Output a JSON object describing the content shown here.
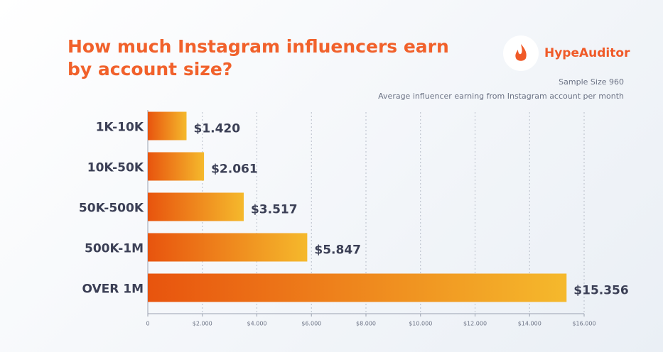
{
  "chart_data": {
    "type": "barh",
    "title": "How much Instagram influencers earn by account size?",
    "brand": "HypeAuditor",
    "subtitle": "Sample Size 960",
    "note": "Average influencer earning from Instagram account per month",
    "categories": [
      "1K-10K",
      "10K-50K",
      "50K-500K",
      "500K-1M",
      "OVER 1M"
    ],
    "values": [
      1420,
      2061,
      3517,
      5847,
      15356
    ],
    "value_labels": [
      "$1.420",
      "$2.061",
      "$3.517",
      "$5.847",
      "$15.356"
    ],
    "colors": [
      "#e8540e",
      "#f5b92c"
    ],
    "xlim": [
      0,
      16000
    ],
    "xticks": [
      0,
      {
        "value": 2000,
        "label": "$2.000"
      },
      {
        "value": 4000,
        "label": "$4.000"
      },
      {
        "value": 6000,
        "label": "$6.000"
      },
      {
        "value": 8000,
        "label": "$8.000"
      },
      {
        "value": 10000,
        "label": "$10.000"
      },
      {
        "value": 12000,
        "label": "$12.000"
      },
      {
        "value": 14000,
        "label": "$14.000"
      },
      {
        "value": 16000,
        "label": "$16.000"
      }
    ],
    "grid": true
  }
}
